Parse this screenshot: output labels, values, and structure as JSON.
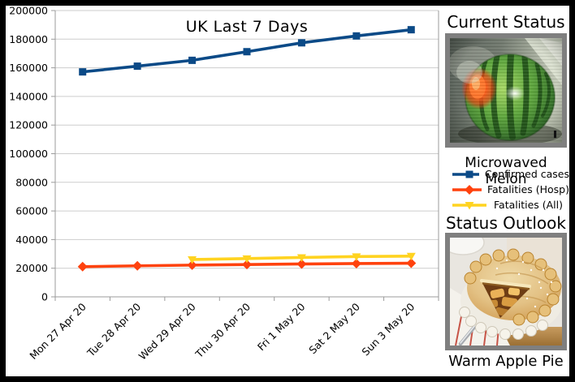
{
  "window": {
    "background": "#000000",
    "panel_background": "#ffffff"
  },
  "chart_data": {
    "type": "line",
    "title": "UK Last 7 Days",
    "categories": [
      "Mon 27 Apr 20",
      "Tue 28 Apr 20",
      "Wed 29 Apr 20",
      "Thu 30 Apr 20",
      "Fri 1 May 20",
      "Sat 2 May 20",
      "Sun 3 May 20"
    ],
    "series": [
      {
        "name": "Confirmed cases",
        "color": "#0b4a87",
        "marker": "square",
        "values": [
          157149,
          161145,
          165221,
          171253,
          177454,
          182260,
          186599
        ]
      },
      {
        "name": "Fatalities (Hosp)",
        "color": "#ff420e",
        "marker": "diamond",
        "values": [
          21092,
          21678,
          22173,
          22569,
          22954,
          23240,
          23500
        ]
      },
      {
        "name": "Fatalities (All)",
        "color": "#ffd320",
        "marker": "triangle-down",
        "values": [
          null,
          null,
          26097,
          26711,
          27510,
          28131,
          28446
        ]
      }
    ],
    "ylim": [
      0,
      200000
    ],
    "ytick_step": 20000,
    "ytick_labels": [
      "0",
      "20000",
      "40000",
      "60000",
      "80000",
      "100000",
      "120000",
      "140000",
      "160000",
      "180000",
      "200000"
    ],
    "grid": true,
    "legend_position": "right-panel",
    "x_label_rotation_deg": -45
  },
  "right_panel": {
    "current_status_heading": "Current Status",
    "melon_caption": "Microwaved Melon",
    "status_outlook_heading": "Status Outlook",
    "pie_caption": "Warm Apple Pie"
  },
  "colors": {
    "grid": "#cdcdcd",
    "axis": "#9b9b9b",
    "text": "#000000",
    "image_border": "#7f7f7f"
  }
}
